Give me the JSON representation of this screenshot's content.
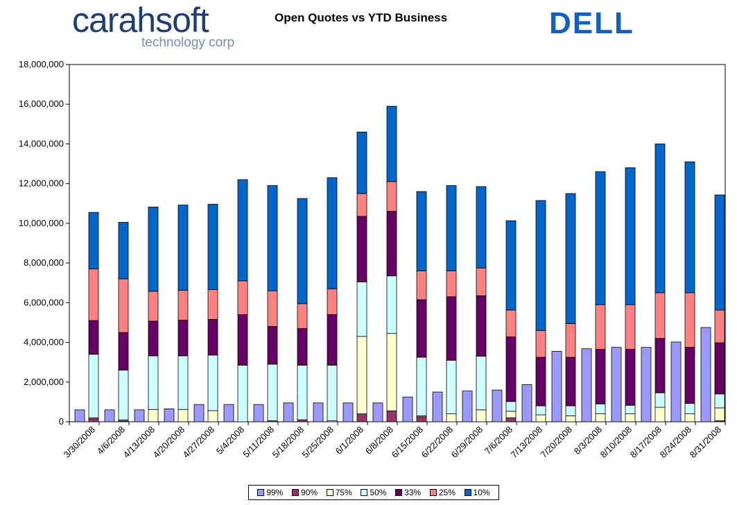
{
  "header": {
    "logo_left_brand": "carahsoft",
    "logo_left_tagline": "technology corp",
    "logo_right": "DELL"
  },
  "colors": {
    "99%": "#9999ff",
    "90%": "#993366",
    "75%": "#ffffcc",
    "50%": "#ccffff",
    "33%": "#660066",
    "25%": "#ff8080",
    "10%": "#0066cc"
  },
  "chart_data": {
    "type": "bar",
    "stacked": true,
    "title": "Open Quotes vs YTD Business",
    "xlabel": "",
    "ylabel": "",
    "ylim": [
      0,
      18000000
    ],
    "y_ticks": [
      "0",
      "2,000,000",
      "4,000,000",
      "6,000,000",
      "8,000,000",
      "10,000,000",
      "12,000,000",
      "14,000,000",
      "16,000,000",
      "18,000,000"
    ],
    "legend_position": "bottom",
    "grid": false,
    "categories": [
      "3/30/2008",
      "4/6/2008",
      "4/13/2008",
      "4/20/2008",
      "4/27/2008",
      "5/4/2008",
      "5/11/2008",
      "5/18/2008",
      "5/25/2008",
      "6/1/2008",
      "6/8/2008",
      "6/15/2008",
      "6/22/2008",
      "6/29/2008",
      "7/6/2008",
      "7/13/2008",
      "7/20/2008",
      "8/3/2008",
      "8/10/2008",
      "8/17/2008",
      "8/24/2008",
      "8/31/2008"
    ],
    "ytd_series": {
      "name": "99%",
      "values": [
        600000,
        600000,
        600000,
        650000,
        870000,
        870000,
        870000,
        950000,
        950000,
        950000,
        950000,
        1250000,
        1500000,
        1550000,
        1600000,
        1870000,
        3550000,
        3680000,
        3750000,
        3750000,
        4020000,
        4750000
      ]
    },
    "series": [
      {
        "name": "90%",
        "values": [
          150000,
          50000,
          0,
          0,
          0,
          0,
          50000,
          100000,
          0,
          400000,
          550000,
          250000,
          0,
          0,
          200000,
          0,
          0,
          0,
          0,
          0,
          0,
          50000
        ]
      },
      {
        "name": "75%",
        "values": [
          50000,
          50000,
          620000,
          620000,
          560000,
          0,
          0,
          0,
          50000,
          3900000,
          3900000,
          50000,
          400000,
          600000,
          330000,
          350000,
          300000,
          400000,
          400000,
          730000,
          400000,
          650000
        ]
      },
      {
        "name": "50%",
        "values": [
          3200000,
          2500000,
          2700000,
          2700000,
          2800000,
          2850000,
          2850000,
          2750000,
          2800000,
          2750000,
          2900000,
          2950000,
          2700000,
          2700000,
          490000,
          450000,
          500000,
          500000,
          430000,
          730000,
          520000,
          700000
        ]
      },
      {
        "name": "33%",
        "values": [
          1700000,
          1900000,
          1750000,
          1800000,
          1800000,
          2550000,
          1900000,
          1850000,
          2550000,
          3300000,
          3250000,
          2900000,
          3200000,
          3050000,
          3260000,
          2450000,
          2450000,
          2750000,
          2820000,
          2740000,
          2830000,
          2580000
        ]
      },
      {
        "name": "25%",
        "values": [
          2600000,
          2700000,
          1500000,
          1500000,
          1500000,
          1700000,
          1800000,
          1250000,
          1300000,
          1150000,
          1500000,
          1450000,
          1300000,
          1400000,
          1350000,
          1350000,
          1700000,
          2250000,
          2250000,
          2300000,
          2750000,
          1650000
        ]
      },
      {
        "name": "10%",
        "values": [
          2850000,
          2850000,
          4250000,
          4300000,
          4300000,
          5100000,
          5300000,
          5300000,
          5600000,
          3100000,
          3800000,
          4000000,
          4300000,
          4100000,
          4500000,
          6550000,
          6550000,
          6700000,
          6900000,
          7500000,
          6600000,
          5800000
        ]
      }
    ]
  }
}
